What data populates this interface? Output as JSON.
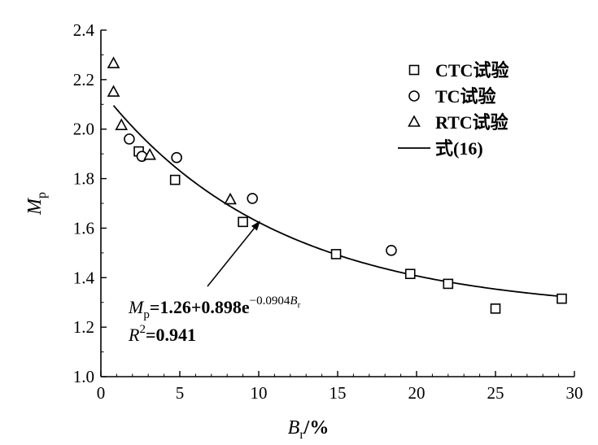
{
  "chart_data": {
    "type": "scatter",
    "xlabel": {
      "main": "B",
      "sub": "r",
      "suffix": "/%"
    },
    "ylabel": {
      "main": "M",
      "sub": "p"
    },
    "xlim": [
      0,
      30
    ],
    "ylim": [
      1.0,
      2.4
    ],
    "xticks": [
      "0",
      "5",
      "10",
      "15",
      "20",
      "25",
      "30"
    ],
    "yticks": [
      "1.0",
      "1.2",
      "1.4",
      "1.6",
      "1.8",
      "2.0",
      "2.2",
      "2.4"
    ],
    "grid": false,
    "legend_position": "top-right",
    "series": [
      {
        "name": "CTC试验",
        "marker": "square",
        "points": [
          [
            2.4,
            1.91
          ],
          [
            4.7,
            1.795
          ],
          [
            9.0,
            1.625
          ],
          [
            14.9,
            1.495
          ],
          [
            19.6,
            1.415
          ],
          [
            22.0,
            1.375
          ],
          [
            25.0,
            1.275
          ],
          [
            29.2,
            1.315
          ]
        ]
      },
      {
        "name": "TC试验",
        "marker": "circle",
        "points": [
          [
            1.8,
            1.96
          ],
          [
            2.6,
            1.89
          ],
          [
            4.8,
            1.885
          ],
          [
            9.6,
            1.72
          ],
          [
            18.4,
            1.51
          ]
        ]
      },
      {
        "name": "RTC试验",
        "marker": "triangle",
        "points": [
          [
            0.8,
            2.265
          ],
          [
            0.8,
            2.15
          ],
          [
            1.3,
            2.015
          ],
          [
            3.1,
            1.895
          ],
          [
            8.2,
            1.715
          ]
        ]
      },
      {
        "name": "式(16)",
        "marker": "line",
        "fit": {
          "a": 1.26,
          "b": 0.898,
          "c": 0.0904,
          "x_from": 0.8,
          "x_to": 29.2
        }
      }
    ],
    "annotation": {
      "eq_lhs_main": "M",
      "eq_lhs_sub": "p",
      "eq_rhs": "=1.26+0.898e",
      "eq_exp": "−0.0904",
      "eq_exp_var_main": "B",
      "eq_exp_var_sub": "r",
      "r2_main": "R",
      "r2_sup": "2",
      "r2_value": "=0.941",
      "arrow_to": [
        10.1,
        1.63
      ]
    }
  }
}
